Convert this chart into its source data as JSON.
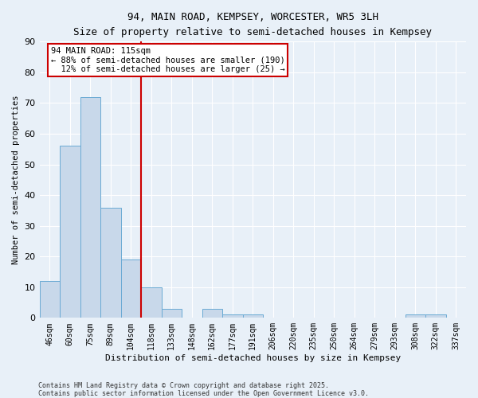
{
  "title1": "94, MAIN ROAD, KEMPSEY, WORCESTER, WR5 3LH",
  "title2": "Size of property relative to semi-detached houses in Kempsey",
  "xlabel": "Distribution of semi-detached houses by size in Kempsey",
  "ylabel": "Number of semi-detached properties",
  "categories": [
    "46sqm",
    "60sqm",
    "75sqm",
    "89sqm",
    "104sqm",
    "118sqm",
    "133sqm",
    "148sqm",
    "162sqm",
    "177sqm",
    "191sqm",
    "206sqm",
    "220sqm",
    "235sqm",
    "250sqm",
    "264sqm",
    "279sqm",
    "293sqm",
    "308sqm",
    "322sqm",
    "337sqm"
  ],
  "values": [
    12,
    56,
    72,
    36,
    19,
    10,
    3,
    0,
    3,
    1,
    1,
    0,
    0,
    0,
    0,
    0,
    0,
    0,
    1,
    1,
    0
  ],
  "bar_color": "#c8d8ea",
  "bar_edge_color": "#6aaad4",
  "vline_color": "#cc0000",
  "annotation_line1": "94 MAIN ROAD: 115sqm",
  "annotation_line2": "← 88% of semi-detached houses are smaller (190)",
  "annotation_line3": "  12% of semi-detached houses are larger (25) →",
  "annotation_box_color": "#ffffff",
  "annotation_box_edge": "#cc0000",
  "footer1": "Contains HM Land Registry data © Crown copyright and database right 2025.",
  "footer2": "Contains public sector information licensed under the Open Government Licence v3.0.",
  "bg_color": "#e8f0f8",
  "ylim": [
    0,
    90
  ],
  "yticks": [
    0,
    10,
    20,
    30,
    40,
    50,
    60,
    70,
    80,
    90
  ],
  "grid_color": "#ffffff",
  "vline_index": 4.5
}
